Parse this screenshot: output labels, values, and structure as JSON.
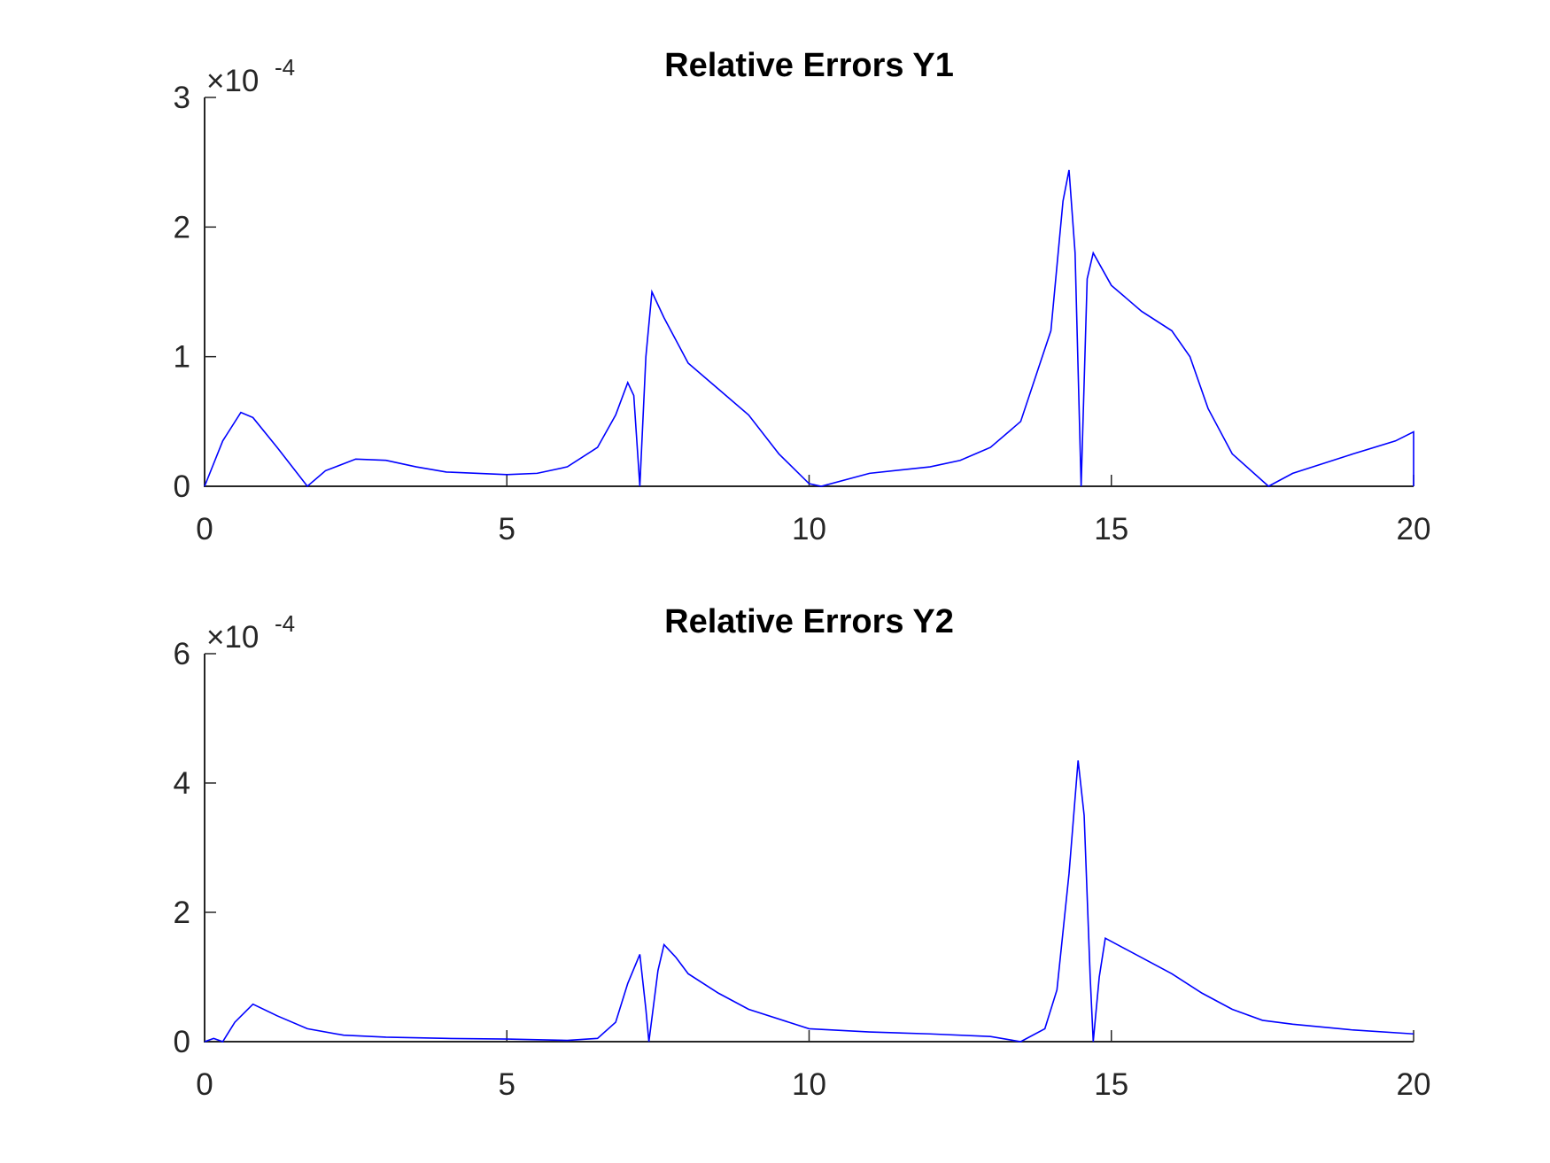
{
  "chart_data": [
    {
      "type": "line",
      "title": "Relative Errors Y1",
      "color": "#0000ff",
      "y_multiplier": {
        "base": "×10",
        "exponent": "-4"
      },
      "x": [
        0,
        0.3,
        0.6,
        0.8,
        1.2,
        1.7,
        2.0,
        2.5,
        3,
        3.5,
        4,
        5,
        5.5,
        6,
        6.5,
        6.8,
        7.0,
        7.1,
        7.2,
        7.3,
        7.4,
        7.6,
        8,
        8.5,
        9,
        9.5,
        10,
        10.2,
        11,
        12,
        12.5,
        13,
        13.5,
        14,
        14.2,
        14.3,
        14.4,
        14.5,
        14.6,
        14.7,
        15,
        15.5,
        16,
        16.3,
        16.6,
        17,
        17.6,
        18,
        19,
        19.7,
        20,
        20
      ],
      "values": [
        0,
        0.35,
        0.57,
        0.53,
        0.3,
        0,
        0.12,
        0.21,
        0.2,
        0.15,
        0.11,
        0.09,
        0.1,
        0.15,
        0.3,
        0.55,
        0.8,
        0.7,
        0,
        1.0,
        1.5,
        1.3,
        0.95,
        0.75,
        0.55,
        0.25,
        0.02,
        0,
        0.1,
        0.15,
        0.2,
        0.3,
        0.5,
        1.2,
        2.2,
        2.44,
        1.8,
        0,
        1.6,
        1.8,
        1.55,
        1.35,
        1.2,
        1.0,
        0.6,
        0.25,
        0,
        0.1,
        0.25,
        0.35,
        0.42,
        0
      ],
      "xlim": [
        0,
        20
      ],
      "xticks": [
        0,
        5,
        10,
        15,
        20
      ],
      "ylim": [
        0,
        3
      ],
      "yticks": [
        0,
        1,
        2,
        3
      ]
    },
    {
      "type": "line",
      "title": "Relative Errors Y2",
      "color": "#0000ff",
      "y_multiplier": {
        "base": "×10",
        "exponent": "-4"
      },
      "x": [
        0,
        0.15,
        0.3,
        0.5,
        0.8,
        1.2,
        1.7,
        2.3,
        3,
        4,
        5,
        6,
        6.5,
        6.8,
        7.0,
        7.2,
        7.3,
        7.35,
        7.5,
        7.6,
        7.8,
        8,
        8.5,
        9,
        10,
        11,
        12,
        13,
        13.5,
        13.9,
        14.1,
        14.3,
        14.45,
        14.55,
        14.65,
        14.7,
        14.8,
        14.9,
        15.2,
        16,
        16.5,
        17,
        17.5,
        18,
        19,
        20
      ],
      "values": [
        0,
        0.05,
        0,
        0.3,
        0.58,
        0.4,
        0.2,
        0.1,
        0.07,
        0.05,
        0.04,
        0.02,
        0.05,
        0.3,
        0.9,
        1.35,
        0.5,
        0,
        1.1,
        1.5,
        1.3,
        1.05,
        0.75,
        0.5,
        0.2,
        0.15,
        0.12,
        0.08,
        0,
        0.2,
        0.8,
        2.6,
        4.35,
        3.5,
        1.0,
        0,
        1.0,
        1.6,
        1.45,
        1.05,
        0.75,
        0.5,
        0.33,
        0.27,
        0.18,
        0.12
      ],
      "xlim": [
        0,
        20
      ],
      "xticks": [
        0,
        5,
        10,
        15,
        20
      ],
      "ylim": [
        0,
        6
      ],
      "yticks": [
        0,
        2,
        4,
        6
      ]
    }
  ]
}
